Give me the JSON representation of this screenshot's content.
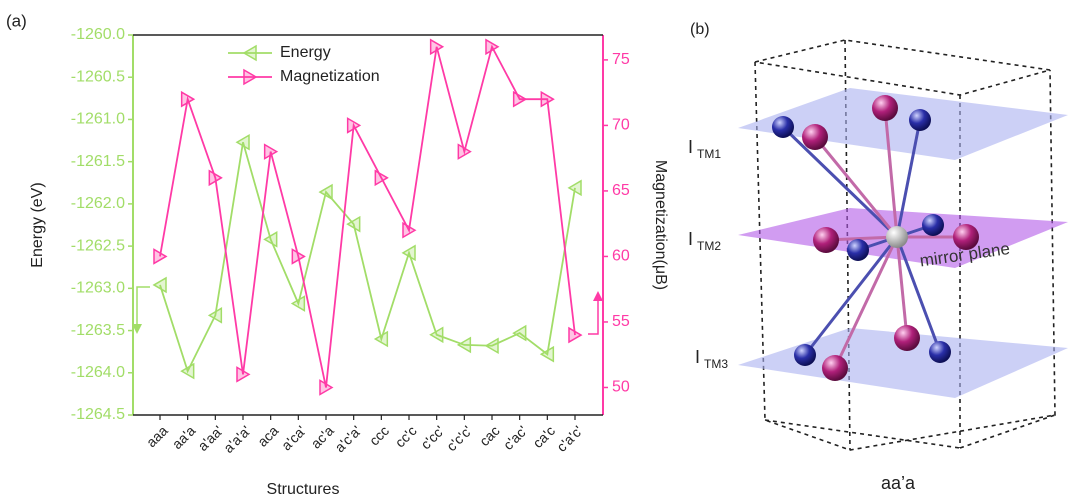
{
  "chart_data": {
    "type": "line",
    "panel_label": "(a)",
    "x_label": "Structures",
    "y_label": "Energy (eV)",
    "y2_label": "Magnetization(μB)",
    "categories": [
      "aaa",
      "aa'a",
      "a'aa'",
      "a'a'a'",
      "aca",
      "a'ca'",
      "ac'a",
      "a'c'a'",
      "ccc",
      "cc'c",
      "c'cc'",
      "c'c'c'",
      "cac",
      "c'ac'",
      "ca'c",
      "c'a'c'"
    ],
    "series": [
      {
        "name": "Energy",
        "color": "#a2dd68",
        "values": [
          -1262.96,
          -1263.98,
          -1263.32,
          -1261.27,
          -1262.42,
          -1263.18,
          -1261.86,
          -1262.24,
          -1263.6,
          -1262.58,
          -1263.55,
          -1263.67,
          -1263.68,
          -1263.53,
          -1263.78,
          -1261.81
        ]
      },
      {
        "name": "Magnetization",
        "color": "#ff3aa6",
        "axis": "y2",
        "values": [
          60,
          72,
          66,
          51,
          68,
          60,
          50,
          70,
          66,
          62,
          76,
          68,
          76,
          72,
          72,
          54
        ]
      }
    ],
    "ylim": [
      -1264.5,
      -1260
    ],
    "yticks": [
      {
        "value": -1260,
        "label": "-1260.0"
      },
      -1260.5,
      {
        "value": -1261,
        "label": "-1261.0"
      },
      -1261.5,
      {
        "value": -1262,
        "label": "-1262.0"
      },
      -1262.5,
      {
        "value": -1263,
        "label": "-1263.0"
      },
      -1263.5,
      {
        "value": -1264,
        "label": "-1264.0"
      },
      -1264.5
    ],
    "y2lim": [
      47.9,
      76.9
    ],
    "y2ticks": [
      50,
      55,
      60,
      65,
      70,
      75
    ],
    "legend": "top"
  },
  "diagram": {
    "panel_label": "(b)",
    "layers": [
      {
        "symbol": "I",
        "subscript": "TM1"
      },
      {
        "symbol": "I",
        "subscript": "TM2"
      },
      {
        "symbol": "I",
        "subscript": "TM3"
      }
    ],
    "mirror_label": "mirror plane",
    "caption": "aa’a"
  }
}
